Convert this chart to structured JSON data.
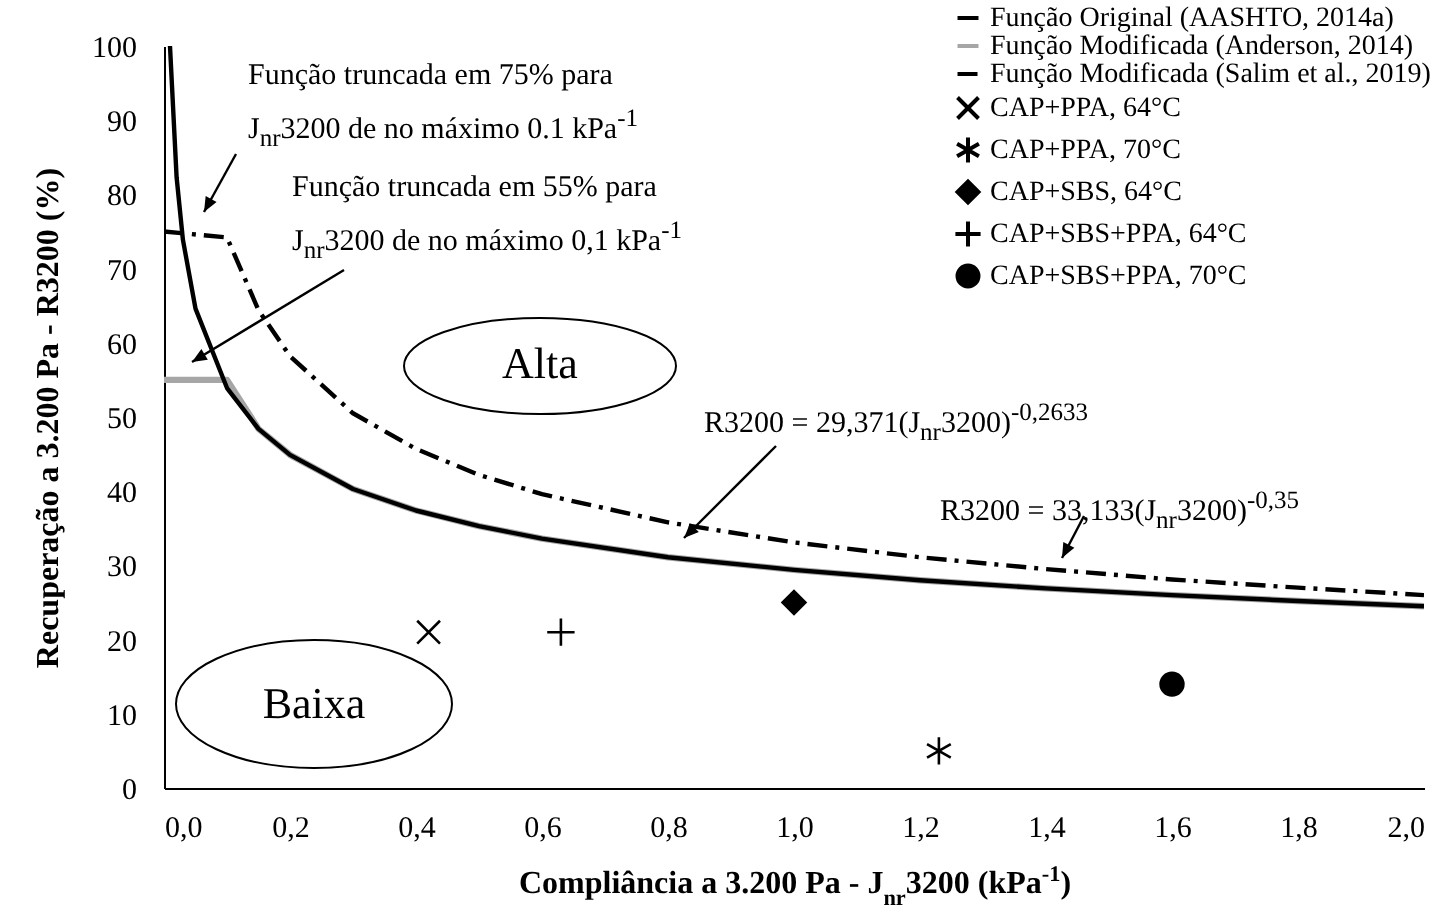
{
  "chart_data": {
    "type": "scatter",
    "xlabel": "Compliância a 3.200 Pa - J$_{nr}$3200 (kPa$^{-1}$)",
    "ylabel": "Recuperação a 3.200 Pa - R3200 (%)",
    "xlim": [
      0,
      2
    ],
    "xticks": [
      {
        "value": 0,
        "label": "0,0"
      },
      {
        "value": 0.2,
        "label": "0,2"
      },
      {
        "value": 0.4,
        "label": "0,4"
      },
      {
        "value": 0.6,
        "label": "0,6"
      },
      {
        "value": 0.8,
        "label": "0,8"
      },
      {
        "value": 1,
        "label": "1,0"
      },
      {
        "value": 1.2,
        "label": "1,2"
      },
      {
        "value": 1.4,
        "label": "1,4"
      },
      {
        "value": 1.6,
        "label": "1,6"
      },
      {
        "value": 1.8,
        "label": "1,8"
      },
      {
        "value": 2,
        "label": "2,0"
      }
    ],
    "ylim": [
      0,
      100
    ],
    "yticks": [
      0,
      10,
      20,
      30,
      40,
      50,
      60,
      70,
      80,
      90,
      100
    ],
    "grid": false,
    "legend": "top right",
    "series": [
      {
        "name": "Função Original (AASHTO, 2014a)",
        "type": "line",
        "color": "#000000",
        "line_style": "solid",
        "x": [
          0.0095,
          0.02,
          0.03,
          0.05,
          0.1,
          0.15,
          0.2,
          0.3,
          0.4,
          0.5,
          0.6,
          0.8,
          1.0,
          1.2,
          1.4,
          1.6,
          1.8,
          2.0
        ],
        "values": [
          100,
          82.3,
          73.9,
          64.6,
          53.9,
          48.4,
          44.9,
          40.3,
          37.4,
          35.3,
          33.6,
          31.1,
          29.4,
          28.0,
          26.9,
          26.0,
          25.2,
          24.5
        ]
      },
      {
        "name": "Função Modificada (Anderson, 2014)",
        "type": "line",
        "color": "#a6a6a6",
        "line_style": "solid",
        "x": [
          0,
          0.1,
          0.15,
          0.2,
          0.3,
          0.4,
          0.5,
          0.6,
          0.8,
          1.0,
          1.2,
          1.4,
          1.6,
          1.8,
          2.0
        ],
        "values": [
          55,
          55,
          48.4,
          44.9,
          40.3,
          37.4,
          35.3,
          33.6,
          31.1,
          29.4,
          28.0,
          26.9,
          26.0,
          25.2,
          24.5
        ]
      },
      {
        "name": "Função Modificada (Salim et al., 2019)",
        "type": "line",
        "color": "#000000",
        "line_style": "dashed",
        "x": [
          0,
          0.1,
          0.15,
          0.2,
          0.3,
          0.4,
          0.5,
          0.6,
          0.8,
          1.0,
          1.2,
          1.4,
          1.6,
          1.8,
          2.0
        ],
        "values": [
          75,
          74.2,
          64.4,
          58.2,
          50.5,
          45.7,
          42.2,
          39.6,
          35.8,
          33.1,
          31.1,
          29.5,
          28.1,
          27.0,
          26.0
        ]
      },
      {
        "name": "CAP+PPA, 64°C",
        "color": "#000000",
        "marker": "cross",
        "x": [
          0.42
        ],
        "values": [
          21
        ]
      },
      {
        "name": "CAP+PPA, 70°C",
        "color": "#000000",
        "x": [
          1.23
        ],
        "values": [
          5
        ]
      },
      {
        "name": "CAP+SBS, 64°C",
        "color": "#000000",
        "marker": "diamond",
        "x": [
          1.0
        ],
        "values": [
          25
        ]
      },
      {
        "name": "CAP+SBS+PPA, 64°C",
        "color": "#000000",
        "marker": "plus",
        "x": [
          0.63
        ],
        "values": [
          21
        ]
      },
      {
        "name": "CAP+SBS+PPA, 70°C",
        "color": "#000000",
        "marker": "circle",
        "x": [
          1.6
        ],
        "values": [
          14
        ]
      }
    ],
    "annotations": [
      "Função truncada em 75% para J$_{nr}$3200 de no máximo  0.1 kPa$^{-1}$",
      "Função truncada em 55% para J$_{nr}$3200 de no máximo  0,1 kPa$^{-1}$",
      "R3200 = 29,371(J$_{nr}$3200)$^{-0,2633}$",
      "R3200 = 33,133(J$_{nr}$3200)$^{-0,35}$",
      "Alta",
      "Baixa"
    ]
  }
}
